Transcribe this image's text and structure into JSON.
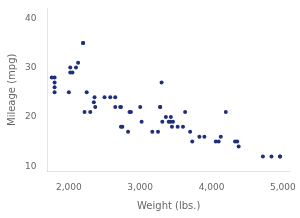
{
  "chart_data": {
    "type": "scatter",
    "xlabel": "Weight (lbs.)",
    "ylabel": "Mileage (mpg)",
    "color": "#1f2f7a",
    "x": [
      1760,
      1800,
      1800,
      1800,
      1800,
      2000,
      2020,
      2020,
      2050,
      2100,
      2130,
      2200,
      2200,
      2220,
      2250,
      2300,
      2350,
      2360,
      2370,
      2500,
      2580,
      2650,
      2650,
      2720,
      2730,
      2730,
      2750,
      2830,
      2850,
      2870,
      3000,
      3020,
      3170,
      3250,
      3280,
      3280,
      3300,
      3310,
      3360,
      3400,
      3425,
      3430,
      3445,
      3460,
      3525,
      3600,
      3630,
      3700,
      3730,
      3830,
      3900,
      4060,
      4100,
      4130,
      4200,
      4330,
      4360,
      4380,
      4720,
      4840,
      4960,
      4960
    ],
    "values": [
      28,
      28,
      26,
      27,
      25,
      25,
      30,
      29,
      29,
      30,
      31,
      35,
      35,
      21,
      25,
      21,
      23,
      24,
      22,
      24,
      24,
      24,
      22,
      22,
      22,
      18,
      18,
      17,
      21,
      21,
      22,
      19,
      17,
      17,
      22,
      22,
      27,
      19,
      20,
      19,
      19,
      20,
      18,
      19,
      18,
      18,
      21,
      17,
      15,
      16,
      16,
      15,
      15,
      16,
      21,
      15,
      15,
      14,
      12,
      12,
      12,
      12
    ],
    "xlim": [
      1700,
      5100
    ],
    "ylim": [
      9,
      42
    ],
    "xticks": [
      {
        "value": 2000,
        "label": "2,000"
      },
      {
        "value": 3000,
        "label": "3,000"
      },
      {
        "value": 4000,
        "label": "4,000"
      },
      {
        "value": 5000,
        "label": "5,000"
      }
    ],
    "yticks": [
      10,
      20,
      30,
      40
    ],
    "grid": false
  }
}
